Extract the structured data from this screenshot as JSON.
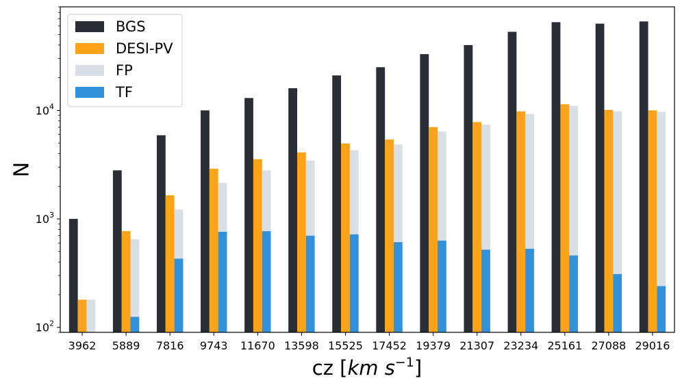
{
  "chart_data": {
    "type": "bar",
    "scale": "log",
    "title": "",
    "xlabel_prefix": "cz [",
    "xlabel_italic": "km s",
    "xlabel_exp": "−1",
    "xlabel_suffix": "]",
    "ylabel": "N",
    "ylim": [
      90,
      90000
    ],
    "yticks": [
      {
        "value": 100,
        "base": "10",
        "exp": "2"
      },
      {
        "value": 1000,
        "base": "10",
        "exp": "3"
      },
      {
        "value": 10000,
        "base": "10",
        "exp": "4"
      }
    ],
    "legend_position": "top-left",
    "categories": [
      "3962",
      "5889",
      "7816",
      "9743",
      "11670",
      "13598",
      "15525",
      "17452",
      "19379",
      "21307",
      "23234",
      "25161",
      "27088",
      "29016"
    ],
    "series": [
      {
        "name": "BGS",
        "color": "#282d36",
        "values": [
          1000,
          2800,
          5900,
          10000,
          13000,
          16000,
          21000,
          25000,
          33000,
          40000,
          53000,
          65000,
          63000,
          66000
        ]
      },
      {
        "name": "DESI-PV",
        "color": "#ffa31a",
        "values": [
          180,
          770,
          1650,
          2900,
          3550,
          4100,
          4950,
          5400,
          7000,
          7800,
          9800,
          11400,
          10100,
          10000
        ]
      },
      {
        "name": "FP",
        "color": "#d9dfe7",
        "values": [
          180,
          650,
          1220,
          2150,
          2800,
          3450,
          4300,
          4850,
          6400,
          7400,
          9300,
          11000,
          9800,
          9700
        ]
      },
      {
        "name": "TF",
        "color": "#3291db",
        "values": [
          0,
          125,
          430,
          760,
          770,
          700,
          720,
          610,
          630,
          520,
          530,
          460,
          310,
          240
        ]
      }
    ]
  }
}
